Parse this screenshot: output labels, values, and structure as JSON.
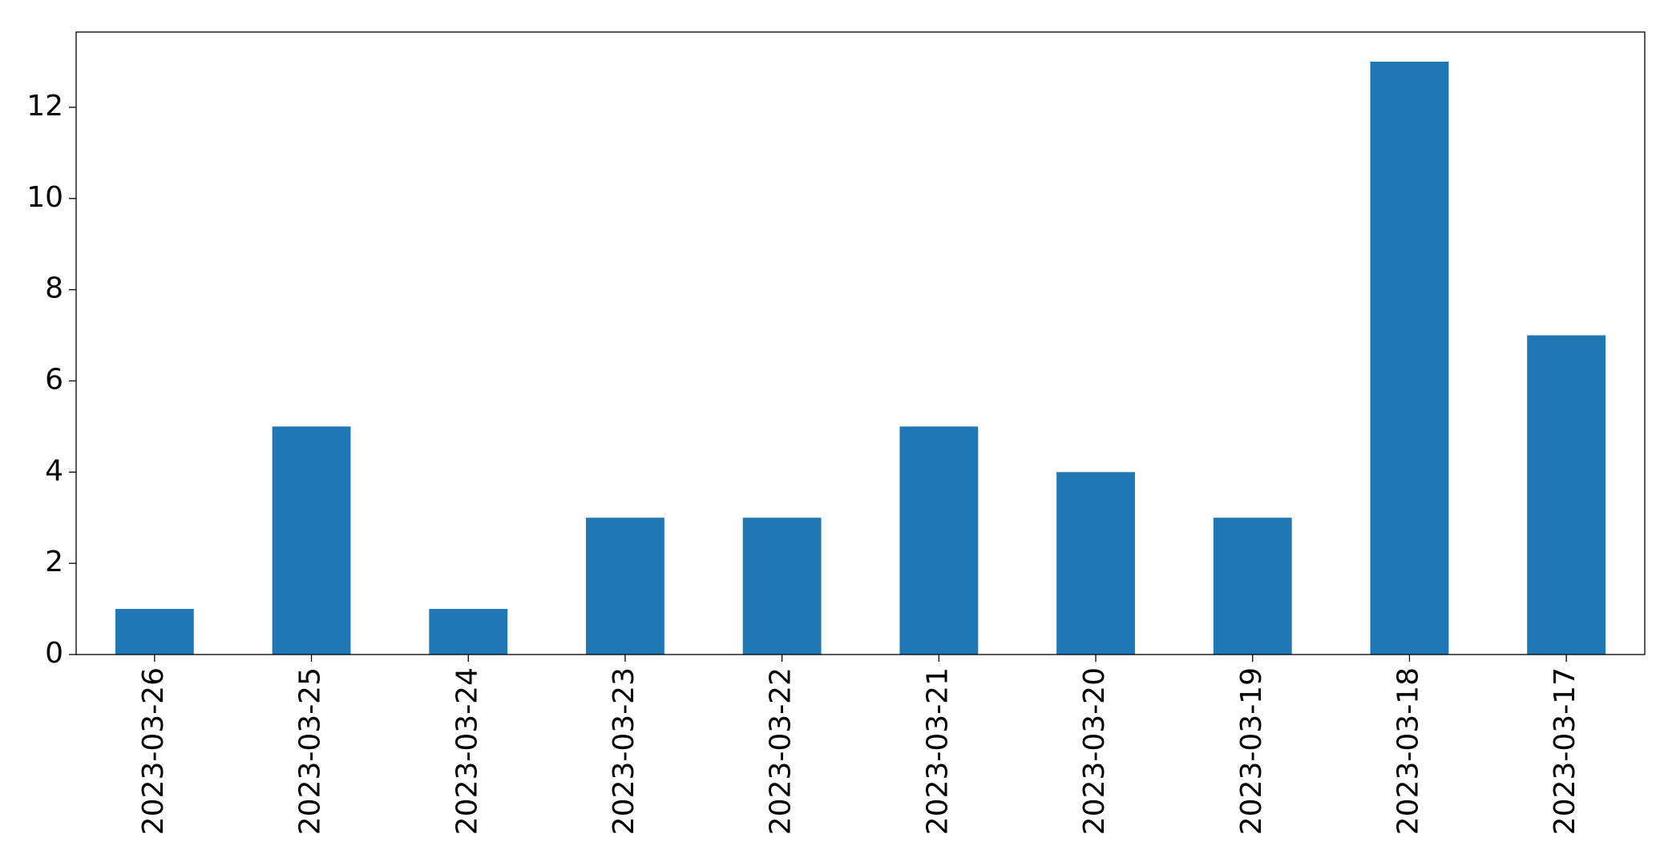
{
  "chart_data": {
    "type": "bar",
    "categories": [
      "2023-03-26",
      "2023-03-25",
      "2023-03-24",
      "2023-03-23",
      "2023-03-22",
      "2023-03-21",
      "2023-03-20",
      "2023-03-19",
      "2023-03-18",
      "2023-03-17"
    ],
    "values": [
      1,
      5,
      1,
      3,
      3,
      5,
      4,
      3,
      13,
      7
    ],
    "color": "#1f77b4",
    "ylim": [
      0,
      13.65
    ],
    "yticks": [
      0,
      2,
      4,
      6,
      8,
      10,
      12
    ],
    "grid": false
  }
}
